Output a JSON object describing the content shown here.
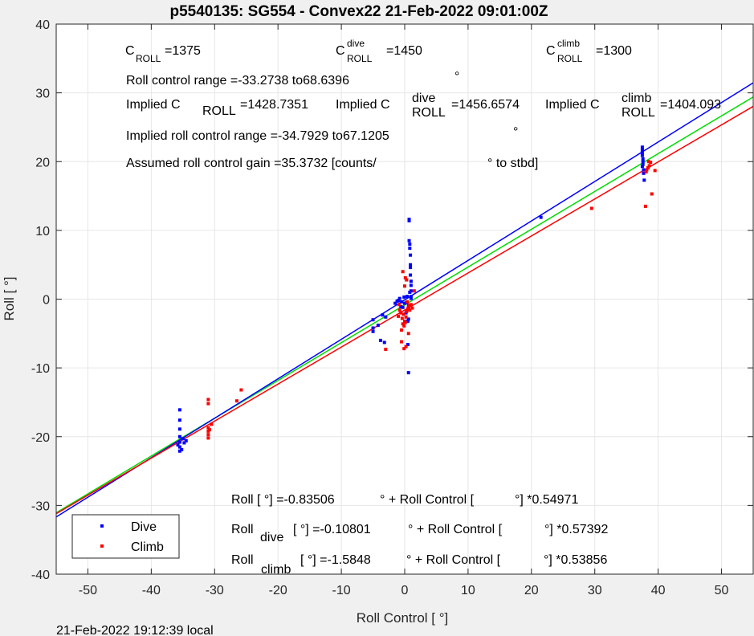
{
  "chart_data": {
    "type": "scatter",
    "title": "p5540135: SG554 - Convex22 21-Feb-2022 09:01:00Z",
    "xlabel": "Roll Control [   °]",
    "ylabel": "Roll [  °]",
    "xlim": [
      -55,
      55
    ],
    "ylim": [
      -40,
      40
    ],
    "xticks": [
      -50,
      -40,
      -30,
      -20,
      -10,
      0,
      10,
      20,
      30,
      40,
      50
    ],
    "yticks": [
      -40,
      -30,
      -20,
      -10,
      0,
      10,
      20,
      30,
      40
    ],
    "grid": true,
    "legend_position": "bottom-left",
    "legend": [
      "Dive",
      "Climb"
    ],
    "footer": "21-Feb-2022 19:12:39 local",
    "colors": {
      "dive": "#0000ff",
      "climb": "#ff0000",
      "fit_all": "#00dd00",
      "fit_dive": "#0000ff",
      "fit_climb": "#ff0000"
    },
    "fits": [
      {
        "name": "all",
        "intercept": -0.83506,
        "slope": 0.54971,
        "color": "#00dd00"
      },
      {
        "name": "dive",
        "intercept": -0.10801,
        "slope": 0.57392,
        "color": "#0000ff"
      },
      {
        "name": "climb",
        "intercept": -1.5848,
        "slope": 0.53856,
        "color": "#ff0000"
      }
    ],
    "annotations": {
      "c_roll": {
        "base": "C",
        "sub": "ROLL",
        "value": "=1375"
      },
      "c_roll_dive": {
        "base": "C",
        "sup": "dive",
        "sub": "ROLL",
        "value": "=1450"
      },
      "c_roll_climb": {
        "base": "C",
        "sup": "climb",
        "sub": "ROLL",
        "value": "=1300"
      },
      "range": "Roll control range =-33.2738 to68.6396",
      "implied_all": {
        "prefix": "Implied C",
        "sub": "ROLL",
        "value": "=1428.7351"
      },
      "implied_dive": {
        "prefix": "Implied C",
        "sup": "dive",
        "sub": "ROLL",
        "value": "=1456.6574"
      },
      "implied_climb": {
        "prefix": "Implied C",
        "sup": "climb",
        "sub": "ROLL",
        "value": "=1404.093"
      },
      "implied_range": "Implied roll control range =-34.7929 to67.1205",
      "gain": "Assumed roll control gain =35.3732 [counts/",
      "gain_unit": "° to stbd]",
      "degree": "°",
      "eq_all_a": "Roll [  °] =-0.83506",
      "eq_all_b": "° + Roll Control [",
      "eq_all_c": "°] *0.54971",
      "eq_dive_label": "Roll",
      "eq_dive_sub": "dive",
      "eq_dive_a": "[  °] =-0.10801",
      "eq_dive_b": "° + Roll Control [",
      "eq_dive_c": "°] *0.57392",
      "eq_climb_label": "Roll",
      "eq_climb_sub": "climb",
      "eq_climb_a": "[  °] =-1.5848",
      "eq_climb_b": "° + Roll Control [",
      "eq_climb_c": "°] *0.53856"
    },
    "series": [
      {
        "name": "Dive",
        "color": "#0000ff",
        "points": [
          [
            -35.5,
            -16.1
          ],
          [
            -35.5,
            -17.6
          ],
          [
            -35.5,
            -18.9
          ],
          [
            -35.5,
            -20.0
          ],
          [
            -35.5,
            -20.8
          ],
          [
            -35.5,
            -21.5
          ],
          [
            -35.5,
            -22.1
          ],
          [
            -35.2,
            -21.9
          ],
          [
            -35.0,
            -20.3
          ],
          [
            -34.8,
            -20.9
          ],
          [
            -34.5,
            -20.6
          ],
          [
            -35.8,
            -21.2
          ],
          [
            -5.0,
            -3.0
          ],
          [
            -5.0,
            -4.2
          ],
          [
            -5.0,
            -4.7
          ],
          [
            -4.2,
            -3.8
          ],
          [
            -3.5,
            -2.3
          ],
          [
            -3.0,
            -2.6
          ],
          [
            -1.5,
            -0.6
          ],
          [
            -1.2,
            -0.3
          ],
          [
            -1.0,
            -0.2
          ],
          [
            -0.8,
            0.1
          ],
          [
            -0.5,
            -0.4
          ],
          [
            -0.3,
            -1.2
          ],
          [
            -0.1,
            0.3
          ],
          [
            0.0,
            -0.6
          ],
          [
            0.2,
            -2.0
          ],
          [
            0.4,
            0.4
          ],
          [
            0.6,
            -0.9
          ],
          [
            0.8,
            1.0
          ],
          [
            1.0,
            0.1
          ],
          [
            0.3,
            -0.5
          ],
          [
            -0.6,
            -1.1
          ],
          [
            -3.8,
            -6.0
          ],
          [
            -3.2,
            -6.3
          ],
          [
            0.5,
            -6.6
          ],
          [
            0.6,
            -10.7
          ],
          [
            0.5,
            -3.2
          ],
          [
            0.6,
            -2.9
          ],
          [
            0.7,
            11.6
          ],
          [
            0.7,
            11.4
          ],
          [
            0.7,
            8.5
          ],
          [
            0.8,
            8.0
          ],
          [
            0.8,
            7.4
          ],
          [
            0.9,
            6.4
          ],
          [
            0.9,
            5.0
          ],
          [
            0.9,
            4.6
          ],
          [
            0.9,
            3.5
          ],
          [
            1.0,
            2.6
          ],
          [
            1.0,
            2.0
          ],
          [
            1.0,
            1.2
          ],
          [
            1.0,
            0.4
          ],
          [
            21.5,
            11.9
          ],
          [
            37.5,
            22.1
          ],
          [
            37.5,
            21.7
          ],
          [
            37.5,
            21.3
          ],
          [
            37.5,
            20.9
          ],
          [
            37.6,
            20.4
          ],
          [
            37.6,
            20.0
          ],
          [
            37.6,
            19.6
          ],
          [
            37.7,
            18.8
          ],
          [
            37.7,
            18.3
          ],
          [
            37.8,
            17.3
          ],
          [
            37.5,
            19.3
          ]
        ]
      },
      {
        "name": "Climb",
        "color": "#ff0000",
        "points": [
          [
            -31.0,
            -14.6
          ],
          [
            -31.0,
            -15.2
          ],
          [
            -31.0,
            -18.7
          ],
          [
            -31.0,
            -19.2
          ],
          [
            -31.0,
            -19.7
          ],
          [
            -31.0,
            -20.2
          ],
          [
            -30.5,
            -18.2
          ],
          [
            -30.8,
            -19.0
          ],
          [
            -26.5,
            -14.8
          ],
          [
            -25.8,
            -13.2
          ],
          [
            -3.0,
            -7.3
          ],
          [
            -0.5,
            -6.2
          ],
          [
            -0.1,
            -7.2
          ],
          [
            0.2,
            -6.9
          ],
          [
            -0.5,
            -4.5
          ],
          [
            -0.3,
            -3.6
          ],
          [
            -0.1,
            -3.9
          ],
          [
            0.0,
            -3.2
          ],
          [
            0.2,
            -2.6
          ],
          [
            0.3,
            -1.8
          ],
          [
            0.5,
            -1.4
          ],
          [
            0.6,
            -1.2
          ],
          [
            0.7,
            -0.9
          ],
          [
            0.8,
            -1.6
          ],
          [
            1.0,
            -0.8
          ],
          [
            1.2,
            -1.3
          ],
          [
            -0.2,
            -2.2
          ],
          [
            -0.4,
            -2.8
          ],
          [
            -0.6,
            -2.0
          ],
          [
            0.1,
            -3.4
          ],
          [
            -0.8,
            -1.6
          ],
          [
            -0.9,
            -0.8
          ],
          [
            0.4,
            -0.4
          ],
          [
            -0.3,
            4.0
          ],
          [
            0.1,
            3.1
          ],
          [
            0.3,
            2.8
          ],
          [
            0.0,
            1.9
          ],
          [
            0.6,
            -5.0
          ],
          [
            1.5,
            1.2
          ],
          [
            -1.0,
            -2.5
          ],
          [
            29.5,
            13.2
          ],
          [
            38.0,
            13.5
          ],
          [
            38.2,
            18.8
          ],
          [
            38.4,
            19.1
          ],
          [
            38.6,
            19.4
          ],
          [
            38.8,
            19.9
          ],
          [
            39.0,
            15.3
          ],
          [
            39.5,
            18.7
          ],
          [
            38.1,
            18.5
          ],
          [
            38.5,
            20.0
          ]
        ]
      }
    ]
  }
}
